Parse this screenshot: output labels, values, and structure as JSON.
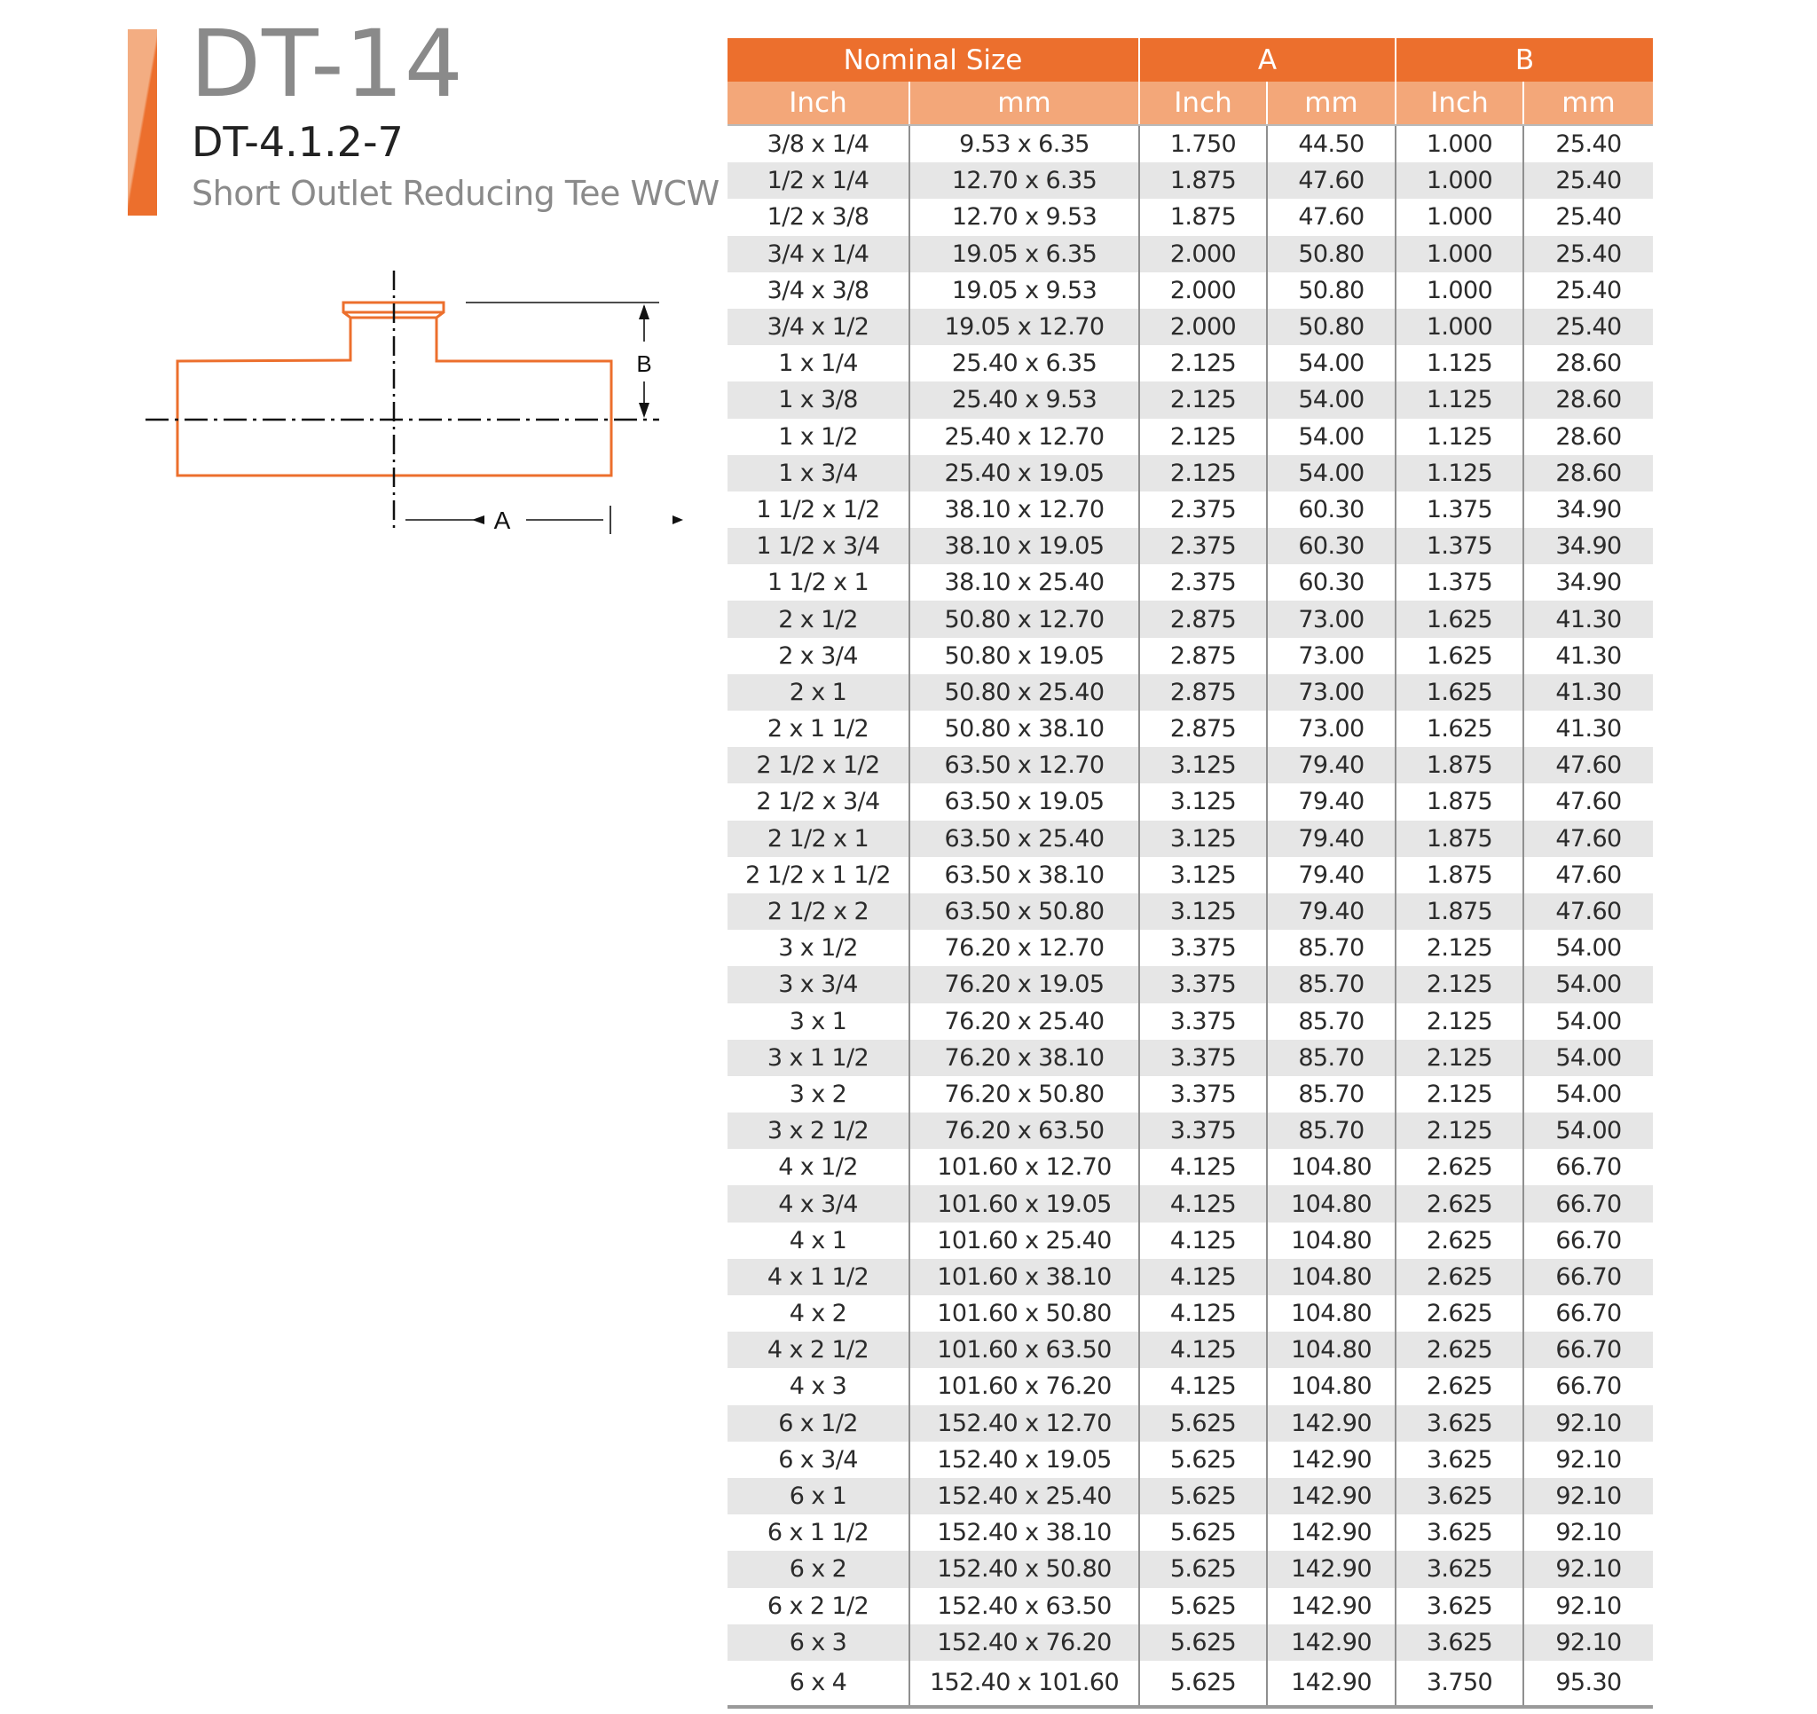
{
  "header": {
    "title": "DT-14",
    "code": "DT-4.1.2-7",
    "subtitle": "Short Outlet Reducing Tee WCW"
  },
  "diagram": {
    "label_a": "A",
    "label_b": "B"
  },
  "colors": {
    "accent": "#ec6f2d",
    "accent_light": "#f3a779",
    "row_alt": "#e6e6e6"
  },
  "table": {
    "group_headers": [
      "Nominal Size",
      "A",
      "B"
    ],
    "sub_headers": [
      "Inch",
      "mm",
      "Inch",
      "mm",
      "Inch",
      "mm"
    ],
    "rows": [
      [
        "3/8 x 1/4",
        "9.53 x 6.35",
        "1.750",
        "44.50",
        "1.000",
        "25.40"
      ],
      [
        "1/2 x 1/4",
        "12.70 x 6.35",
        "1.875",
        "47.60",
        "1.000",
        "25.40"
      ],
      [
        "1/2 x 3/8",
        "12.70 x 9.53",
        "1.875",
        "47.60",
        "1.000",
        "25.40"
      ],
      [
        "3/4 x 1/4",
        "19.05 x 6.35",
        "2.000",
        "50.80",
        "1.000",
        "25.40"
      ],
      [
        "3/4 x 3/8",
        "19.05 x 9.53",
        "2.000",
        "50.80",
        "1.000",
        "25.40"
      ],
      [
        "3/4 x 1/2",
        "19.05 x 12.70",
        "2.000",
        "50.80",
        "1.000",
        "25.40"
      ],
      [
        "1 x 1/4",
        "25.40 x 6.35",
        "2.125",
        "54.00",
        "1.125",
        "28.60"
      ],
      [
        "1 x 3/8",
        "25.40 x 9.53",
        "2.125",
        "54.00",
        "1.125",
        "28.60"
      ],
      [
        "1 x 1/2",
        "25.40 x 12.70",
        "2.125",
        "54.00",
        "1.125",
        "28.60"
      ],
      [
        "1 x 3/4",
        "25.40 x 19.05",
        "2.125",
        "54.00",
        "1.125",
        "28.60"
      ],
      [
        "1 1/2 x 1/2",
        "38.10 x 12.70",
        "2.375",
        "60.30",
        "1.375",
        "34.90"
      ],
      [
        "1 1/2 x 3/4",
        "38.10 x 19.05",
        "2.375",
        "60.30",
        "1.375",
        "34.90"
      ],
      [
        "1 1/2 x 1",
        "38.10 x 25.40",
        "2.375",
        "60.30",
        "1.375",
        "34.90"
      ],
      [
        "2 x 1/2",
        "50.80 x 12.70",
        "2.875",
        "73.00",
        "1.625",
        "41.30"
      ],
      [
        "2 x 3/4",
        "50.80 x 19.05",
        "2.875",
        "73.00",
        "1.625",
        "41.30"
      ],
      [
        "2  x 1",
        "50.80 x 25.40",
        "2.875",
        "73.00",
        "1.625",
        "41.30"
      ],
      [
        "2  x 1 1/2",
        "50.80 x 38.10",
        "2.875",
        "73.00",
        "1.625",
        "41.30"
      ],
      [
        "2 1/2 x 1/2",
        "63.50 x 12.70",
        "3.125",
        "79.40",
        "1.875",
        "47.60"
      ],
      [
        "2 1/2 x 3/4",
        "63.50 x 19.05",
        "3.125",
        "79.40",
        "1.875",
        "47.60"
      ],
      [
        "2 1/2 x 1",
        "63.50 x 25.40",
        "3.125",
        "79.40",
        "1.875",
        "47.60"
      ],
      [
        "2 1/2 x 1 1/2",
        "63.50 x 38.10",
        "3.125",
        "79.40",
        "1.875",
        "47.60"
      ],
      [
        "2 1/2 x 2",
        "63.50 x 50.80",
        "3.125",
        "79.40",
        "1.875",
        "47.60"
      ],
      [
        "3 x 1/2",
        "76.20 x 12.70",
        "3.375",
        "85.70",
        "2.125",
        "54.00"
      ],
      [
        "3 x 3/4",
        "76.20 x 19.05",
        "3.375",
        "85.70",
        "2.125",
        "54.00"
      ],
      [
        "3 x 1",
        "76.20 x 25.40",
        "3.375",
        "85.70",
        "2.125",
        "54.00"
      ],
      [
        "3 x 1 1/2",
        "76.20 x 38.10",
        "3.375",
        "85.70",
        "2.125",
        "54.00"
      ],
      [
        "3 x 2",
        "76.20 x 50.80",
        "3.375",
        "85.70",
        "2.125",
        "54.00"
      ],
      [
        "3 x 2 1/2",
        "76.20 x 63.50",
        "3.375",
        "85.70",
        "2.125",
        "54.00"
      ],
      [
        "4 x 1/2",
        "101.60 x 12.70",
        "4.125",
        "104.80",
        "2.625",
        "66.70"
      ],
      [
        "4 x 3/4",
        "101.60 x 19.05",
        "4.125",
        "104.80",
        "2.625",
        "66.70"
      ],
      [
        "4 x 1",
        "101.60 x 25.40",
        "4.125",
        "104.80",
        "2.625",
        "66.70"
      ],
      [
        "4 x 1 1/2",
        "101.60 x 38.10",
        "4.125",
        "104.80",
        "2.625",
        "66.70"
      ],
      [
        "4 x 2",
        "101.60 x 50.80",
        "4.125",
        "104.80",
        "2.625",
        "66.70"
      ],
      [
        "4 x 2 1/2",
        "101.60 x 63.50",
        "4.125",
        "104.80",
        "2.625",
        "66.70"
      ],
      [
        "4 x 3",
        "101.60 x 76.20",
        "4.125",
        "104.80",
        "2.625",
        "66.70"
      ],
      [
        "6 x 1/2",
        "152.40 x 12.70",
        "5.625",
        "142.90",
        "3.625",
        "92.10"
      ],
      [
        "6 x 3/4",
        "152.40 x 19.05",
        "5.625",
        "142.90",
        "3.625",
        "92.10"
      ],
      [
        "6 x 1",
        "152.40 x 25.40",
        "5.625",
        "142.90",
        "3.625",
        "92.10"
      ],
      [
        "6 x 1 1/2",
        "152.40 x 38.10",
        "5.625",
        "142.90",
        "3.625",
        "92.10"
      ],
      [
        "6 x 2",
        "152.40 x 50.80",
        "5.625",
        "142.90",
        "3.625",
        "92.10"
      ],
      [
        "6 x 2 1/2",
        "152.40 x 63.50",
        "5.625",
        "142.90",
        "3.625",
        "92.10"
      ],
      [
        "6 x 3",
        "152.40 x 76.20",
        "5.625",
        "142.90",
        "3.625",
        "92.10"
      ],
      [
        "6 x 4",
        "152.40 x 101.60",
        "5.625",
        "142.90",
        "3.750",
        "95.30"
      ]
    ]
  }
}
